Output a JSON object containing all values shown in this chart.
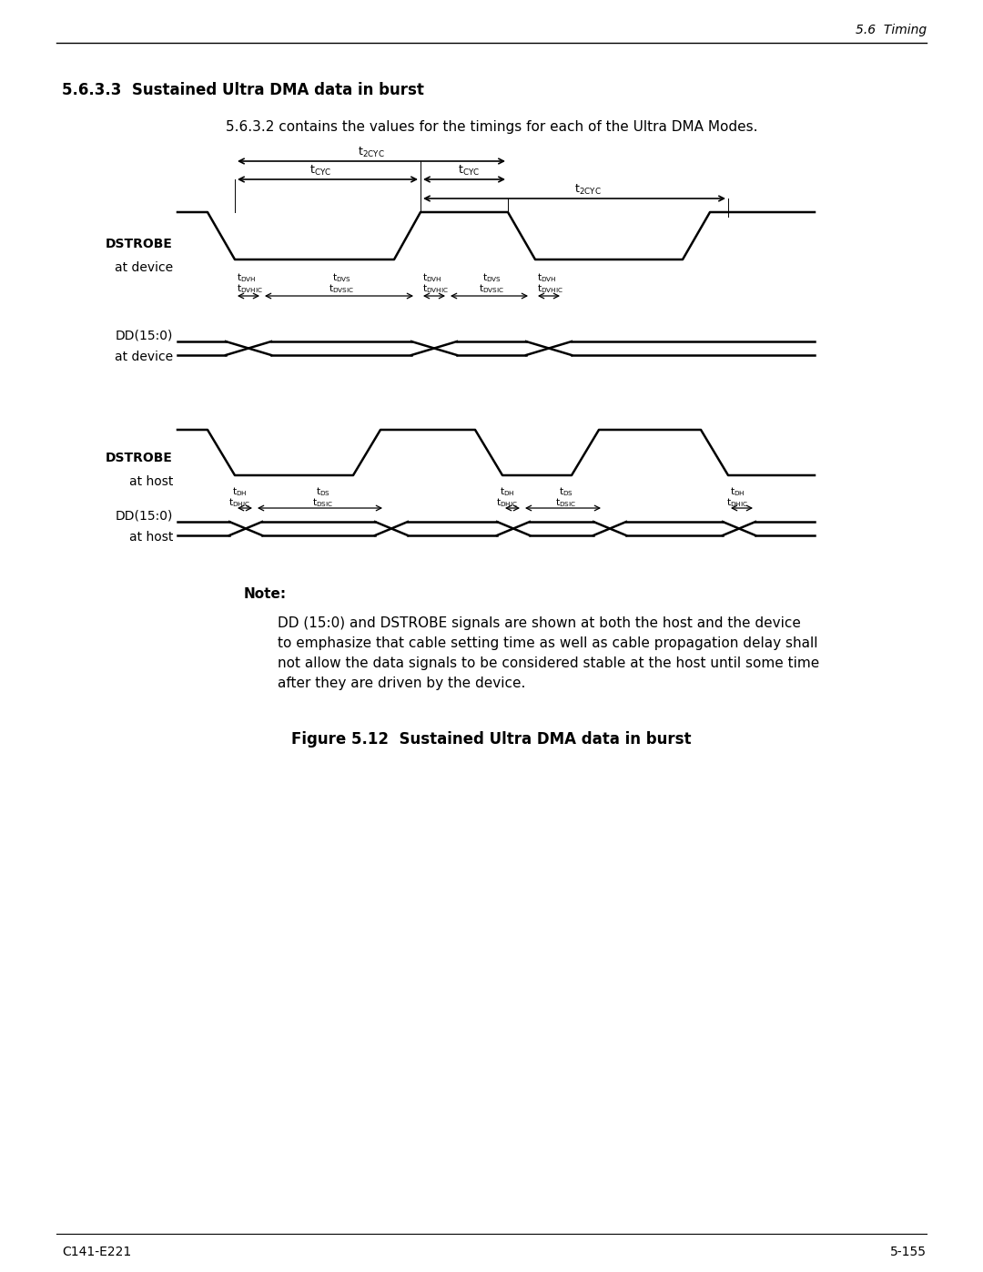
{
  "page_header": "5.6  Timing",
  "section_title": "5.6.3.3  Sustained Ultra DMA data in burst",
  "subtitle": "5.6.3.2 contains the values for the timings for each of the Ultra DMA Modes.",
  "note_title": "Note:",
  "note_text": "DD (15:0) and DSTROBE signals are shown at both the host and the device\nto emphasize that cable setting time as well as cable propagation delay shall\nnot allow the data signals to be considered stable at the host until some time\nafter they are driven by the device.",
  "figure_caption": "Figure 5.12  Sustained Ultra DMA data in burst",
  "footer_left": "C141-E221",
  "footer_right": "5-155",
  "bg_color": "#ffffff",
  "text_color": "#000000",
  "lw_main": 1.8,
  "lw_arrow": 1.2,
  "lw_header": 1.0
}
